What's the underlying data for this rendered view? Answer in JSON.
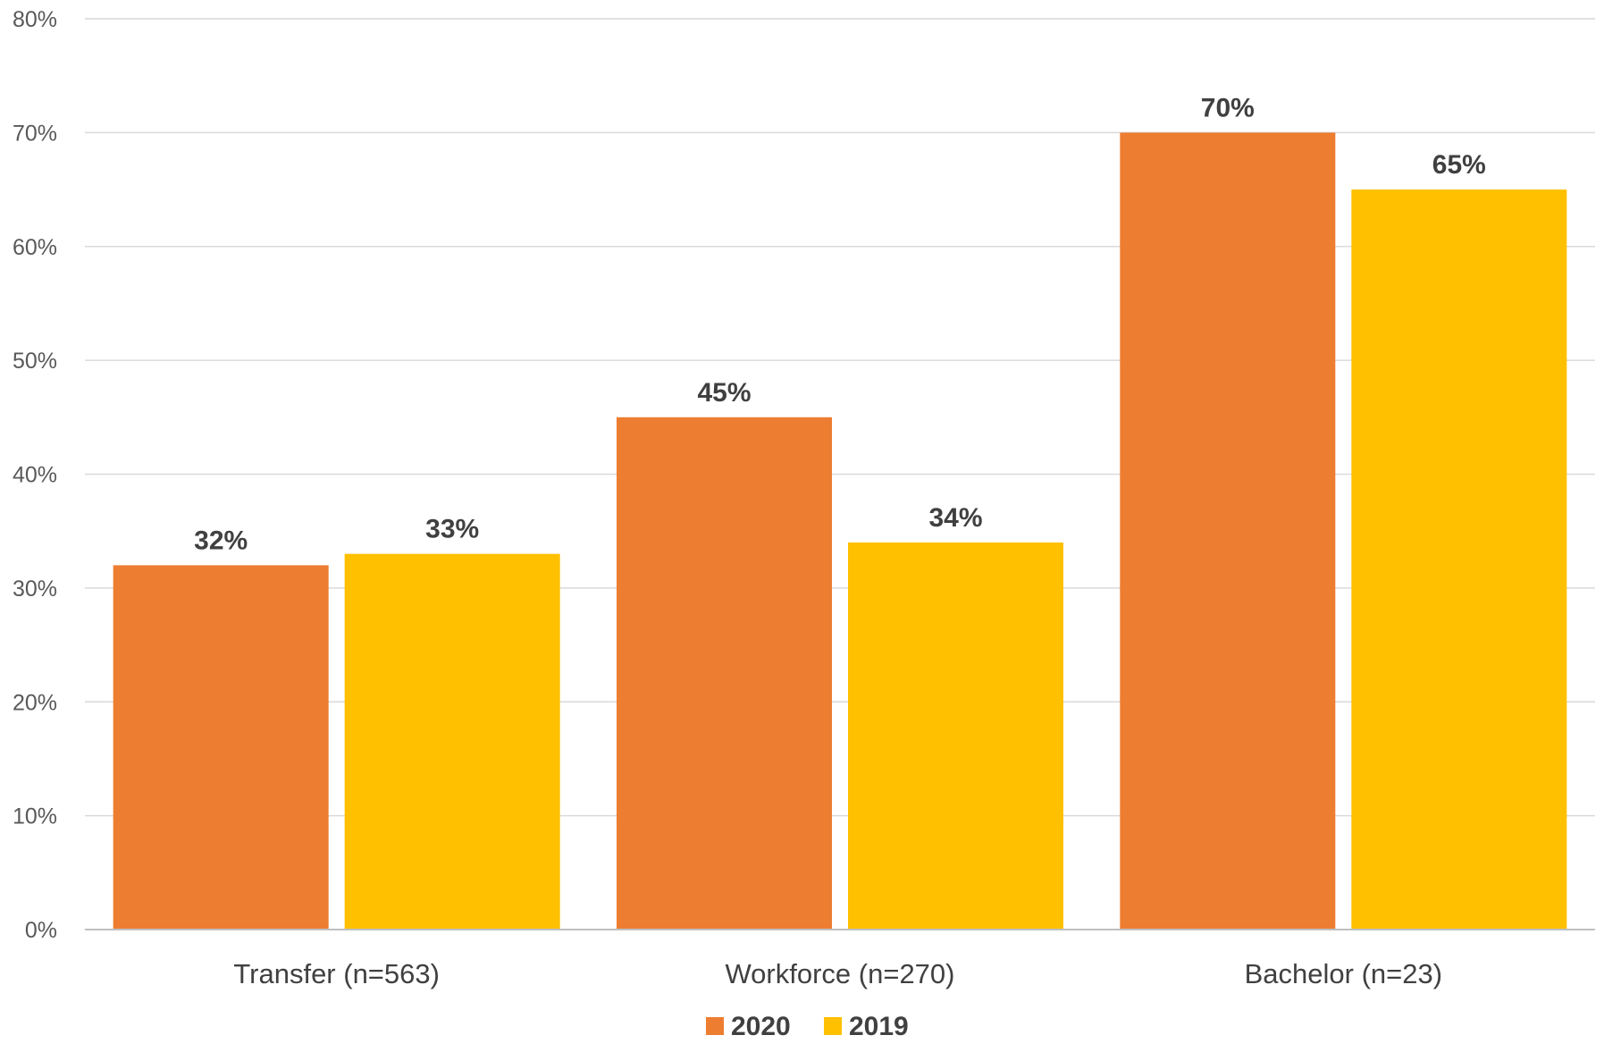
{
  "chart_data": {
    "type": "bar",
    "categories": [
      "Transfer (n=563)",
      "Workforce (n=270)",
      "Bachelor (n=23)"
    ],
    "series": [
      {
        "name": "2020",
        "values": [
          32,
          45,
          70
        ],
        "color": "#ED7D31",
        "labels": [
          "32%",
          "45%",
          "70%"
        ]
      },
      {
        "name": "2019",
        "values": [
          33,
          34,
          65
        ],
        "color": "#FFC000",
        "labels": [
          "33%",
          "34%",
          "65%"
        ]
      }
    ],
    "title": "",
    "xlabel": "",
    "ylabel": "",
    "ylim": [
      0,
      80
    ],
    "yticks": [
      0,
      10,
      20,
      30,
      40,
      50,
      60,
      70,
      80
    ],
    "ytick_labels": [
      "0%",
      "10%",
      "20%",
      "30%",
      "40%",
      "50%",
      "60%",
      "70%",
      "80%"
    ],
    "grid": true,
    "legend_position": "bottom"
  }
}
